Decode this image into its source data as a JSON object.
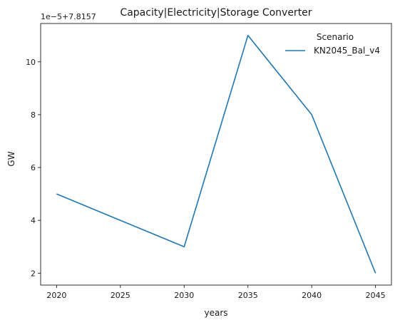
{
  "chart_data": {
    "type": "line",
    "title": "Capacity|Electricity|Storage Converter",
    "xlabel": "years",
    "ylabel": "GW",
    "offset_label": "1e−5+7.8157",
    "x": [
      2020,
      2030,
      2035,
      2040,
      2045
    ],
    "xticks": [
      2020,
      2025,
      2030,
      2035,
      2040,
      2045
    ],
    "yticks": [
      2,
      4,
      6,
      8,
      10
    ],
    "xlim": [
      2018.75,
      2046.25
    ],
    "ylim": [
      1.55,
      11.45
    ],
    "grid": false,
    "legend": {
      "title": "Scenario",
      "placement": "top-right"
    },
    "series": [
      {
        "name": "KN2045_Bal_v4",
        "color": "#1f77b4",
        "values": [
          5,
          3,
          11,
          8,
          2
        ]
      }
    ]
  }
}
